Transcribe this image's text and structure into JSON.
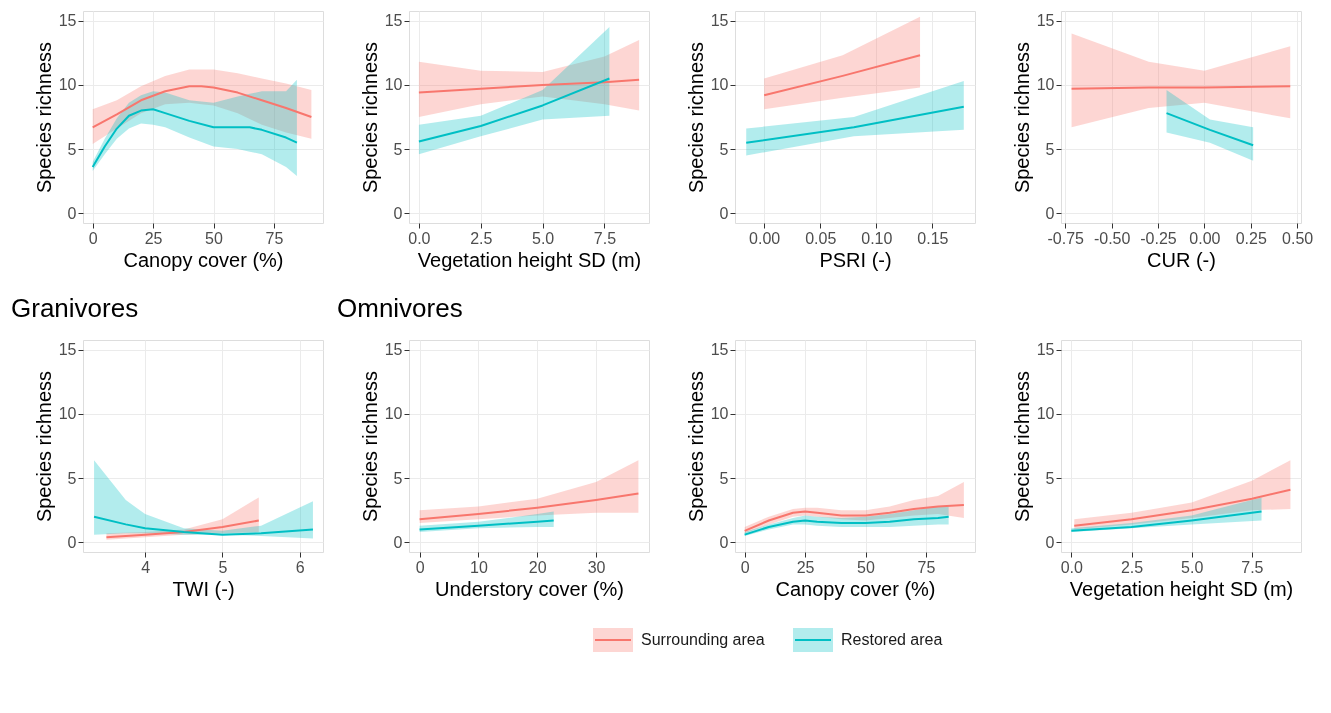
{
  "chart_data": [
    {
      "type": "line",
      "xlabel": "Canopy cover (%)",
      "ylabel": "Species richness",
      "xlim": [
        -4,
        95.3
      ],
      "xticks": [
        0,
        25,
        50,
        75
      ],
      "ylim": [
        -0.75,
        15.75
      ],
      "yticks": [
        0,
        5,
        10,
        15
      ],
      "grid": true,
      "legend": "bottom",
      "series": [
        {
          "name": "Surrounding area",
          "color": "#f8766d",
          "x": [
            0,
            10,
            20,
            30,
            40,
            45,
            50,
            60,
            70,
            80,
            90.5
          ],
          "values": [
            6.7,
            7.7,
            8.8,
            9.5,
            9.9,
            9.9,
            9.8,
            9.4,
            8.8,
            8.2,
            7.5
          ],
          "lower": [
            5.4,
            6.6,
            7.8,
            8.5,
            8.6,
            8.5,
            8.4,
            7.8,
            6.9,
            6.3,
            5.8
          ],
          "upper": [
            8.1,
            8.8,
            9.9,
            10.7,
            11.2,
            11.2,
            11.2,
            10.9,
            10.5,
            10.1,
            9.6
          ]
        },
        {
          "name": "Restored area",
          "color": "#00bfc4",
          "x": [
            0,
            5,
            10,
            15,
            20,
            25,
            30,
            40,
            50,
            60,
            65,
            70,
            80,
            84.5
          ],
          "values": [
            3.6,
            5.2,
            6.6,
            7.6,
            8.0,
            8.1,
            7.8,
            7.2,
            6.7,
            6.7,
            6.7,
            6.5,
            5.9,
            5.5
          ],
          "lower": [
            3.3,
            4.6,
            5.8,
            6.6,
            7.0,
            6.9,
            6.7,
            5.9,
            5.2,
            5.0,
            4.8,
            4.6,
            3.6,
            2.9
          ],
          "upper": [
            4.0,
            5.8,
            7.4,
            8.6,
            9.2,
            9.5,
            9.4,
            8.8,
            8.6,
            9.1,
            9.3,
            9.5,
            9.5,
            10.4
          ]
        }
      ]
    },
    {
      "type": "line",
      "xlabel": "Vegetation height SD (m)",
      "ylabel": "Species richness",
      "xlim": [
        -0.4,
        9.3
      ],
      "xticks": [
        {
          "value": 0,
          "label": "0.0"
        },
        2.5,
        {
          "value": 5,
          "label": "5.0"
        },
        7.5
      ],
      "ylim": [
        -0.75,
        15.75
      ],
      "yticks": [
        0,
        5,
        10,
        15
      ],
      "grid": true,
      "legend": "bottom",
      "series": [
        {
          "name": "Surrounding area",
          "color": "#f8766d",
          "x": [
            0,
            2.5,
            5,
            7.5,
            8.9
          ],
          "values": [
            9.4,
            9.7,
            10.0,
            10.2,
            10.4
          ],
          "lower": [
            7.5,
            8.5,
            9.1,
            8.5,
            8.0
          ],
          "upper": [
            11.8,
            11.1,
            11.0,
            12.2,
            13.5
          ]
        },
        {
          "name": "Restored area",
          "color": "#00bfc4",
          "x": [
            0,
            2.5,
            5,
            7.7
          ],
          "values": [
            5.6,
            6.8,
            8.4,
            10.5
          ],
          "lower": [
            4.6,
            6.0,
            7.3,
            7.6
          ],
          "upper": [
            6.9,
            7.6,
            9.6,
            14.5
          ]
        }
      ]
    },
    {
      "type": "line",
      "xlabel": "PSRI (-)",
      "ylabel": "Species richness",
      "xlim": [
        -0.026,
        0.188
      ],
      "xticks": [
        {
          "value": 0,
          "label": "0.00"
        },
        0.05,
        {
          "value": 0.1,
          "label": "0.10"
        },
        0.15
      ],
      "ylim": [
        -0.75,
        15.75
      ],
      "yticks": [
        0,
        5,
        10,
        15
      ],
      "grid": true,
      "legend": "bottom",
      "series": [
        {
          "name": "Surrounding area",
          "color": "#f8766d",
          "x": [
            0.0,
            0.07,
            0.139
          ],
          "values": [
            9.2,
            10.7,
            12.3
          ],
          "lower": [
            8.1,
            9.0,
            9.8
          ],
          "upper": [
            10.5,
            12.3,
            15.3
          ]
        },
        {
          "name": "Restored area",
          "color": "#00bfc4",
          "x": [
            -0.016,
            0.08,
            0.178
          ],
          "values": [
            5.5,
            6.7,
            8.3
          ],
          "lower": [
            4.5,
            6.0,
            6.5
          ],
          "upper": [
            6.6,
            7.5,
            10.3
          ]
        }
      ]
    },
    {
      "type": "line",
      "xlabel": "CUR (-)",
      "ylabel": "Species richness",
      "xlim": [
        -0.773,
        0.521
      ],
      "xticks": [
        -0.75,
        {
          "value": -0.5,
          "label": "-0.50"
        },
        -0.25,
        {
          "value": 0,
          "label": "0.00"
        },
        0.25,
        {
          "value": 0.5,
          "label": "0.50"
        }
      ],
      "ylim": [
        -0.75,
        15.75
      ],
      "yticks": [
        0,
        5,
        10,
        15
      ],
      "grid": true,
      "legend": "bottom",
      "series": [
        {
          "name": "Surrounding area",
          "color": "#f8766d",
          "x": [
            -0.716,
            -0.3,
            0.0,
            0.463
          ],
          "values": [
            9.7,
            9.8,
            9.8,
            9.9
          ],
          "lower": [
            6.7,
            8.2,
            8.6,
            7.4
          ],
          "upper": [
            14.0,
            11.8,
            11.1,
            13.0
          ]
        },
        {
          "name": "Restored area",
          "color": "#00bfc4",
          "x": [
            -0.204,
            0.03,
            0.263
          ],
          "values": [
            7.8,
            6.5,
            5.3
          ],
          "lower": [
            6.3,
            5.5,
            4.1
          ],
          "upper": [
            9.6,
            7.3,
            6.7
          ]
        }
      ]
    },
    {
      "type": "line",
      "title": "Granivores",
      "xlabel": "TWI (-)",
      "ylabel": "Species richness",
      "xlim": [
        3.197,
        6.3
      ],
      "xticks": [
        4,
        5,
        6
      ],
      "ylim": [
        -0.75,
        15.75
      ],
      "yticks": [
        0,
        5,
        10,
        15
      ],
      "grid": true,
      "legend": "bottom",
      "series": [
        {
          "name": "Surrounding area",
          "color": "#f8766d",
          "x": [
            3.5,
            4,
            4.5,
            5,
            5.47
          ],
          "values": [
            0.4,
            0.6,
            0.8,
            1.2,
            1.7
          ],
          "lower": [
            0.2,
            0.4,
            0.6,
            0.7,
            0.8
          ],
          "upper": [
            0.7,
            0.8,
            1.0,
            1.8,
            3.5
          ]
        },
        {
          "name": "Restored area",
          "color": "#00bfc4",
          "x": [
            3.34,
            3.75,
            4,
            4.5,
            5,
            5.5,
            6.17
          ],
          "values": [
            2.0,
            1.4,
            1.1,
            0.8,
            0.6,
            0.7,
            1.0
          ],
          "lower": [
            0.6,
            0.7,
            0.7,
            0.6,
            0.6,
            0.5,
            0.3
          ],
          "upper": [
            6.4,
            3.3,
            2.2,
            1.1,
            0.9,
            1.3,
            3.2
          ]
        }
      ]
    },
    {
      "type": "line",
      "title": "Omnivores",
      "xlabel": "Understory cover (%)",
      "ylabel": "Species richness",
      "xlim": [
        -1.8,
        39
      ],
      "xticks": [
        0,
        10,
        20,
        30
      ],
      "ylim": [
        -0.75,
        15.75
      ],
      "yticks": [
        0,
        5,
        10,
        15
      ],
      "grid": true,
      "legend": "bottom",
      "series": [
        {
          "name": "Surrounding area",
          "color": "#f8766d",
          "x": [
            0,
            10,
            20,
            30,
            37.2
          ],
          "values": [
            1.8,
            2.2,
            2.7,
            3.3,
            3.8
          ],
          "lower": [
            1.5,
            1.8,
            2.1,
            2.3,
            2.3
          ],
          "upper": [
            2.5,
            2.8,
            3.4,
            4.7,
            6.4
          ]
        },
        {
          "name": "Restored area",
          "color": "#00bfc4",
          "x": [
            0,
            10,
            20,
            22.8
          ],
          "values": [
            1.0,
            1.3,
            1.6,
            1.7
          ],
          "lower": [
            0.8,
            1.1,
            1.2,
            1.2
          ],
          "upper": [
            1.3,
            1.6,
            2.2,
            2.4
          ]
        }
      ]
    },
    {
      "type": "line",
      "xlabel": "Canopy cover (%)",
      "ylabel": "Species richness",
      "xlim": [
        -4,
        95.3
      ],
      "xticks": [
        0,
        25,
        50,
        75
      ],
      "ylim": [
        -0.75,
        15.75
      ],
      "yticks": [
        0,
        5,
        10,
        15
      ],
      "grid": true,
      "legend": "bottom",
      "series": [
        {
          "name": "Surrounding area",
          "color": "#f8766d",
          "x": [
            0,
            10,
            20,
            25,
            30,
            40,
            50,
            60,
            70,
            80,
            90.7
          ],
          "values": [
            0.9,
            1.7,
            2.3,
            2.4,
            2.3,
            2.1,
            2.1,
            2.3,
            2.6,
            2.8,
            2.9
          ],
          "lower": [
            0.7,
            1.4,
            2.0,
            2.1,
            2.0,
            1.8,
            1.7,
            1.9,
            2.1,
            2.2,
            1.9
          ],
          "upper": [
            1.2,
            2.0,
            2.6,
            2.7,
            2.7,
            2.5,
            2.5,
            2.8,
            3.3,
            3.6,
            4.7
          ]
        },
        {
          "name": "Restored area",
          "color": "#00bfc4",
          "x": [
            0,
            10,
            20,
            25,
            30,
            40,
            50,
            60,
            70,
            80,
            84.4
          ],
          "values": [
            0.6,
            1.2,
            1.6,
            1.7,
            1.6,
            1.5,
            1.5,
            1.6,
            1.8,
            1.9,
            2.0
          ],
          "lower": [
            0.5,
            1.0,
            1.4,
            1.4,
            1.3,
            1.2,
            1.2,
            1.2,
            1.3,
            1.4,
            1.4
          ],
          "upper": [
            0.8,
            1.4,
            1.9,
            2.1,
            2.0,
            1.9,
            2.0,
            2.2,
            2.5,
            2.8,
            2.8
          ]
        }
      ]
    },
    {
      "type": "line",
      "xlabel": "Vegetation height SD (m)",
      "ylabel": "Species richness",
      "xlim": [
        -0.43,
        9.54
      ],
      "xticks": [
        {
          "value": 0,
          "label": "0.0"
        },
        2.5,
        {
          "value": 5,
          "label": "5.0"
        },
        7.5
      ],
      "ylim": [
        -0.75,
        15.75
      ],
      "yticks": [
        0,
        5,
        10,
        15
      ],
      "grid": true,
      "legend": "bottom",
      "series": [
        {
          "name": "Surrounding area",
          "color": "#f8766d",
          "x": [
            0.12,
            2.5,
            5,
            7.5,
            9.1
          ],
          "values": [
            1.3,
            1.8,
            2.5,
            3.4,
            4.1
          ],
          "lower": [
            1.0,
            1.4,
            1.9,
            2.5,
            2.6
          ],
          "upper": [
            1.8,
            2.3,
            3.1,
            4.8,
            6.4
          ]
        },
        {
          "name": "Restored area",
          "color": "#00bfc4",
          "x": [
            0,
            2.5,
            5,
            7.9
          ],
          "values": [
            0.9,
            1.2,
            1.7,
            2.4
          ],
          "lower": [
            0.8,
            1.1,
            1.4,
            1.7
          ],
          "upper": [
            1.1,
            1.5,
            2.1,
            3.5
          ]
        }
      ]
    }
  ]
}
